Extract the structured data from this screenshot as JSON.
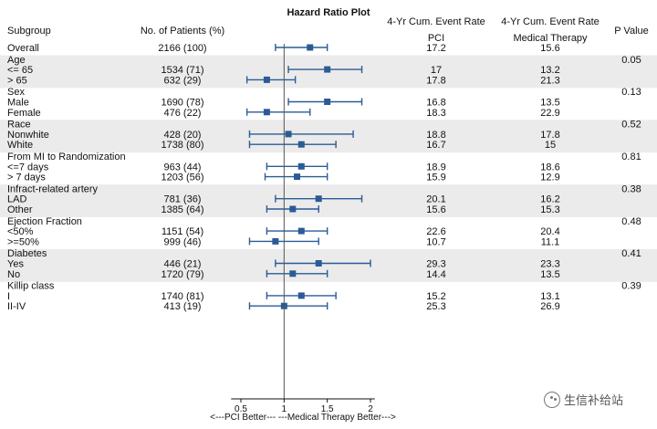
{
  "chart_data": {
    "type": "forest",
    "title": "Hazard Ratio Plot",
    "columns": {
      "subgroup": "Subgroup",
      "patients": "No. of Patients (%)",
      "pci_line1": "4-Yr Cum. Event Rate",
      "pci_line2": "PCI",
      "med_line1": "4-Yr Cum. Event Rate",
      "med_line2": "Medical Therapy",
      "pvalue": "P Value"
    },
    "x_axis": {
      "scale": "linear",
      "ticks": [
        "0.5",
        "1",
        "1.5",
        "2"
      ],
      "tick_values": [
        0.5,
        1,
        1.5,
        2
      ],
      "range": [
        0.45,
        2.05
      ],
      "reference_line": 1,
      "label": "<---PCI Better---   ---Medical Therapy Better--->"
    },
    "groups": [
      {
        "header": "Overall",
        "p_value": "",
        "shaded": false,
        "rows": [
          {
            "label": "",
            "patients": "2166 (100)",
            "pci": "17.2",
            "med": "15.6",
            "hr": 1.3,
            "lo": 0.9,
            "hi": 1.5
          }
        ]
      },
      {
        "header": "Age",
        "p_value": "0.05",
        "shaded": true,
        "rows": [
          {
            "label": "<= 65",
            "patients": "1534 (71)",
            "pci": "17",
            "med": "13.2",
            "hr": 1.5,
            "lo": 1.05,
            "hi": 1.9
          },
          {
            "label": "> 65",
            "patients": "632 (29)",
            "pci": "17.8",
            "med": "21.3",
            "hr": 0.8,
            "lo": 0.57,
            "hi": 1.13
          }
        ]
      },
      {
        "header": "Sex",
        "p_value": "0.13",
        "shaded": false,
        "rows": [
          {
            "label": "Male",
            "patients": "1690 (78)",
            "pci": "16.8",
            "med": "13.5",
            "hr": 1.5,
            "lo": 1.05,
            "hi": 1.9
          },
          {
            "label": "Female",
            "patients": "476 (22)",
            "pci": "18.3",
            "med": "22.9",
            "hr": 0.8,
            "lo": 0.57,
            "hi": 1.3
          }
        ]
      },
      {
        "header": "Race",
        "p_value": "0.52",
        "shaded": true,
        "rows": [
          {
            "label": "Nonwhite",
            "patients": "428 (20)",
            "pci": "18.8",
            "med": "17.8",
            "hr": 1.05,
            "lo": 0.6,
            "hi": 1.8
          },
          {
            "label": "White",
            "patients": "1738 (80)",
            "pci": "16.7",
            "med": "15",
            "hr": 1.2,
            "lo": 0.6,
            "hi": 1.6
          }
        ]
      },
      {
        "header": "From MI to Randomization",
        "p_value": "0.81",
        "shaded": false,
        "rows": [
          {
            "label": "<=7 days",
            "patients": "963 (44)",
            "pci": "18.9",
            "med": "18.6",
            "hr": 1.2,
            "lo": 0.8,
            "hi": 1.5
          }
        ]
      },
      {
        "header": "",
        "p_value": "",
        "shaded": false,
        "continuation": true,
        "rows": [
          {
            "label": "> 7 days",
            "patients": "1203 (56)",
            "pci": "15.9",
            "med": "12.9",
            "hr": 1.15,
            "lo": 0.78,
            "hi": 1.5
          }
        ]
      },
      {
        "header": "Infract-related artery",
        "p_value": "0.38",
        "shaded": true,
        "rows": [
          {
            "label": "LAD",
            "patients": "781 (36)",
            "pci": "20.1",
            "med": "16.2",
            "hr": 1.4,
            "lo": 0.9,
            "hi": 1.9
          },
          {
            "label": "Other",
            "patients": "1385 (64)",
            "pci": "15.6",
            "med": "15.3",
            "hr": 1.1,
            "lo": 0.8,
            "hi": 1.4
          }
        ]
      },
      {
        "header": "Ejection Fraction",
        "p_value": "0.48",
        "shaded": false,
        "rows": [
          {
            "label": "<50%",
            "patients": "1151 (54)",
            "pci": "22.6",
            "med": "20.4",
            "hr": 1.2,
            "lo": 0.8,
            "hi": 1.5
          },
          {
            "label": ">=50%",
            "patients": "999 (46)",
            "pci": "10.7",
            "med": "11.1",
            "hr": 0.9,
            "lo": 0.6,
            "hi": 1.4
          }
        ]
      },
      {
        "header": "Diabetes",
        "p_value": "0.41",
        "shaded": true,
        "rows": [
          {
            "label": "Yes",
            "patients": "446 (21)",
            "pci": "29.3",
            "med": "23.3",
            "hr": 1.4,
            "lo": 0.9,
            "hi": 2.0
          },
          {
            "label": "No",
            "patients": "1720 (79)",
            "pci": "14.4",
            "med": "13.5",
            "hr": 1.1,
            "lo": 0.8,
            "hi": 1.5
          }
        ]
      },
      {
        "header": "Killip class",
        "p_value": "0.39",
        "shaded": false,
        "rows": [
          {
            "label": "I",
            "patients": "1740 (81)",
            "pci": "15.2",
            "med": "13.1",
            "hr": 1.2,
            "lo": 0.8,
            "hi": 1.6
          },
          {
            "label": "II-IV",
            "patients": "413 (19)",
            "pci": "25.3",
            "med": "26.9",
            "hr": 1.0,
            "lo": 0.6,
            "hi": 1.5
          }
        ]
      }
    ]
  },
  "watermark": {
    "text": "生信补给站",
    "icon": "wechat-icon"
  },
  "colors": {
    "marker": "#2a5b96",
    "shade": "#ebebeb",
    "axis": "#111111",
    "ref_line": "#555555"
  }
}
